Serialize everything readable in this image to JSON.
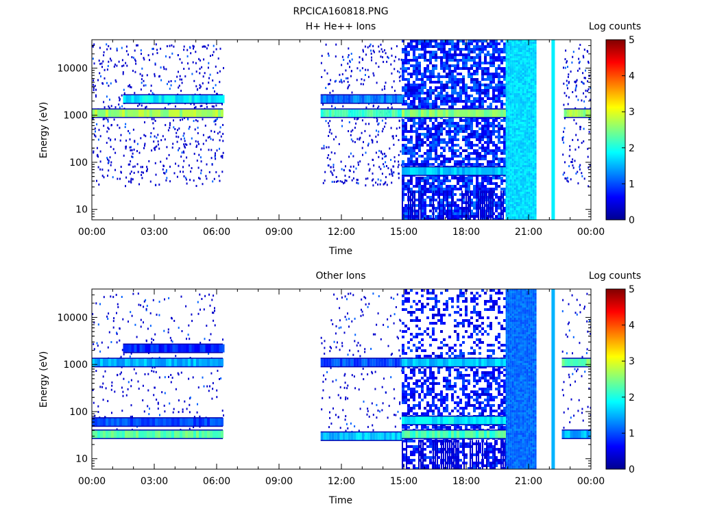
{
  "figure_title": "RPCICA160818.PNG",
  "time_axis": {
    "label": "Time",
    "ticks": [
      "00:00",
      "03:00",
      "06:00",
      "09:00",
      "12:00",
      "15:00",
      "18:00",
      "21:00",
      "00:00"
    ],
    "range_hours": [
      0,
      24
    ]
  },
  "energy_axis": {
    "label": "Energy (eV)",
    "scale": "log",
    "ticks": [
      10,
      100,
      1000,
      10000
    ],
    "tick_labels": [
      "10",
      "100",
      "1000",
      "10000"
    ],
    "range_eV": [
      6,
      40000
    ]
  },
  "colorbar": {
    "label": "Log counts",
    "ticks": [
      "0",
      "1",
      "2",
      "3",
      "4",
      "5"
    ],
    "range": [
      0,
      5
    ],
    "colormap": "jet",
    "stops": [
      "#00008f",
      "#0000ff",
      "#0080ff",
      "#00ffff",
      "#80ff80",
      "#ffff00",
      "#ff8000",
      "#ff0000",
      "#800000"
    ]
  },
  "chart_data": [
    {
      "type": "heatmap",
      "title": "H+ He++ Ions",
      "xlabel": "Time",
      "ylabel": "Energy (eV)",
      "xlim_hours": [
        0,
        24
      ],
      "ylim_eV": [
        6,
        40000
      ],
      "yscale": "log",
      "colorbar_label": "Log counts",
      "data_intervals_hours": [
        [
          0.0,
          6.3
        ],
        [
          11.0,
          14.9
        ],
        [
          14.9,
          19.9
        ],
        [
          19.9,
          21.3
        ],
        [
          22.1,
          22.2
        ],
        [
          22.6,
          24.0
        ]
      ],
      "dense_block_hours": [
        14.9,
        19.9
      ],
      "saturated_block_hours": [
        19.9,
        21.3
      ],
      "bands": [
        {
          "energy_eV": 1100,
          "log_counts": 2.7,
          "hours": [
            0.0,
            6.3
          ]
        },
        {
          "energy_eV": 2200,
          "log_counts": 1.8,
          "hours": [
            1.5,
            6.3
          ]
        },
        {
          "energy_eV": 1100,
          "log_counts": 2.2,
          "hours": [
            11.0,
            14.9
          ]
        },
        {
          "energy_eV": 2200,
          "log_counts": 1.2,
          "hours": [
            11.0,
            14.9
          ]
        },
        {
          "energy_eV": 1100,
          "log_counts": 2.5,
          "hours": [
            14.9,
            19.9
          ]
        },
        {
          "energy_eV": 65,
          "log_counts": 1.6,
          "hours": [
            14.9,
            19.9
          ]
        },
        {
          "energy_eV": 1100,
          "log_counts": 2.6,
          "hours": [
            22.7,
            24.0
          ]
        }
      ]
    },
    {
      "type": "heatmap",
      "title": "Other Ions",
      "xlabel": "Time",
      "ylabel": "Energy (eV)",
      "xlim_hours": [
        0,
        24
      ],
      "ylim_eV": [
        6,
        40000
      ],
      "yscale": "log",
      "colorbar_label": "Log counts",
      "data_intervals_hours": [
        [
          0.0,
          6.3
        ],
        [
          11.0,
          14.9
        ],
        [
          14.9,
          19.9
        ],
        [
          19.9,
          21.3
        ],
        [
          22.1,
          22.2
        ],
        [
          22.6,
          24.0
        ]
      ],
      "dense_block_hours": [
        14.9,
        19.9
      ],
      "saturated_block_hours": [
        19.9,
        21.3
      ],
      "bands": [
        {
          "energy_eV": 1100,
          "log_counts": 1.5,
          "hours": [
            0.0,
            6.3
          ]
        },
        {
          "energy_eV": 2200,
          "log_counts": 0.8,
          "hours": [
            1.5,
            6.3
          ]
        },
        {
          "energy_eV": 60,
          "log_counts": 1.0,
          "hours": [
            0.0,
            6.3
          ]
        },
        {
          "energy_eV": 33,
          "log_counts": 2.3,
          "hours": [
            0.0,
            6.3
          ]
        },
        {
          "energy_eV": 1100,
          "log_counts": 1.0,
          "hours": [
            11.0,
            14.9
          ]
        },
        {
          "energy_eV": 30,
          "log_counts": 1.6,
          "hours": [
            11.0,
            14.9
          ]
        },
        {
          "energy_eV": 1100,
          "log_counts": 1.6,
          "hours": [
            14.9,
            19.9
          ]
        },
        {
          "energy_eV": 65,
          "log_counts": 1.8,
          "hours": [
            14.9,
            19.9
          ]
        },
        {
          "energy_eV": 33,
          "log_counts": 2.2,
          "hours": [
            14.9,
            19.9
          ]
        },
        {
          "energy_eV": 1100,
          "log_counts": 2.4,
          "hours": [
            22.6,
            24.0
          ]
        },
        {
          "energy_eV": 33,
          "log_counts": 1.5,
          "hours": [
            22.6,
            24.0
          ]
        }
      ]
    }
  ]
}
